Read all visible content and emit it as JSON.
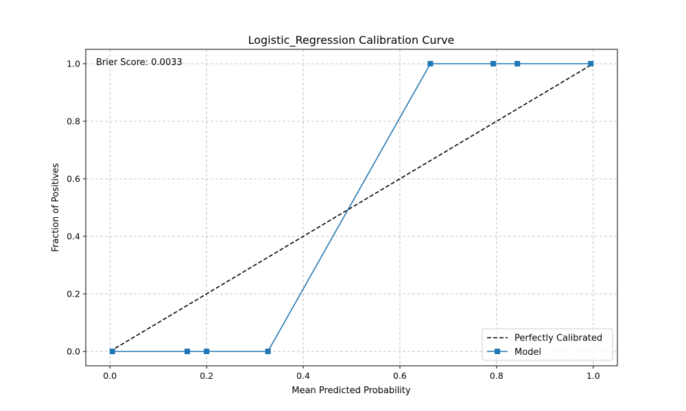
{
  "chart_data": {
    "type": "line",
    "title": "Logistic_Regression Calibration Curve",
    "xlabel": "Mean Predicted Probability",
    "ylabel": "Fraction of Positives",
    "xlim": [
      -0.05,
      1.05
    ],
    "ylim": [
      -0.05,
      1.05
    ],
    "xticks": [
      0.0,
      0.2,
      0.4,
      0.6,
      0.8,
      1.0
    ],
    "xtick_labels": [
      "0.0",
      "0.2",
      "0.4",
      "0.6",
      "0.8",
      "1.0"
    ],
    "yticks": [
      0.0,
      0.2,
      0.4,
      0.6,
      0.8,
      1.0
    ],
    "ytick_labels": [
      "0.0",
      "0.2",
      "0.4",
      "0.6",
      "0.8",
      "1.0"
    ],
    "grid": true,
    "legend_position": "lower-right",
    "annotation": "Brier Score: 0.0033",
    "series": [
      {
        "name": "Perfectly Calibrated",
        "style": "dashed",
        "color": "#000000",
        "marker": "none",
        "x": [
          0.0,
          1.0
        ],
        "y": [
          0.0,
          1.0
        ]
      },
      {
        "name": "Model",
        "style": "solid",
        "color": "#1f77b4",
        "marker": "square",
        "x": [
          0.005,
          0.16,
          0.2,
          0.327,
          0.663,
          0.793,
          0.843,
          0.995
        ],
        "y": [
          0.0,
          0.0,
          0.0,
          0.0,
          1.0,
          1.0,
          1.0,
          1.0
        ]
      }
    ]
  }
}
